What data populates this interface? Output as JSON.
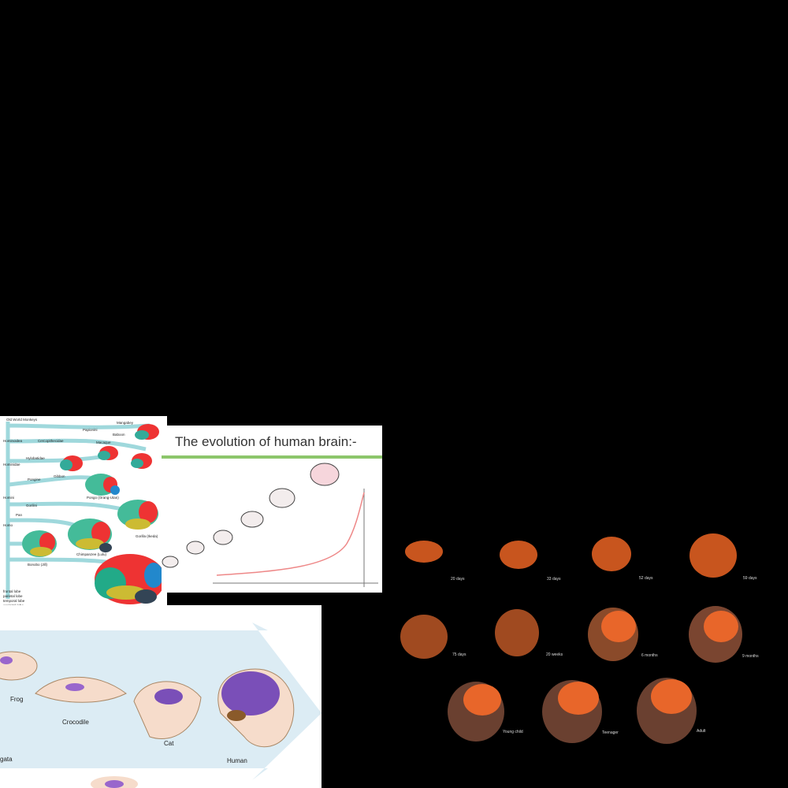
{
  "primate_panel": {
    "labels": [
      "Old World Monkeys",
      "Mangabey",
      "Papionini",
      "Baboon",
      "Cercopithecidae",
      "Macaque",
      "Hominoidea",
      "Hylobatidae",
      "Gibbon",
      "Hominidae",
      "Pongine",
      "Pongo (Orang-Utan)",
      "Homini",
      "Gorilini",
      "Gorilla (Ikeda)",
      "Pan",
      "Homo",
      "Bonobo (Jill)",
      "Chimpanzee (Lulu)",
      "Human (Colin)"
    ],
    "legend": [
      "frontal lobe",
      "parietal lobe",
      "temporal lobe",
      "occipital lobe",
      "sylvian fissure",
      "hindbrain (brainstem & cerebellum)"
    ],
    "caption": "g. 48 Visualization of evolution of brains in primates based on the inner surface. The lobes, the sylvian fissure and the hindbrain (brainstem and cerebellum) are colorized for better orientation."
  },
  "evolution_panel": {
    "title": "The evolution of human brain:-"
  },
  "species_panel": {
    "labels": [
      "Frog",
      "Crocodile",
      "Cat",
      "Human",
      "gata"
    ]
  },
  "development_panel": {
    "labels": [
      "20 days",
      "33 days",
      "52 days",
      "59 days",
      "75 days",
      "20 weeks",
      "6 months",
      "9 months",
      "Young child",
      "Teenager",
      "Adult"
    ]
  }
}
